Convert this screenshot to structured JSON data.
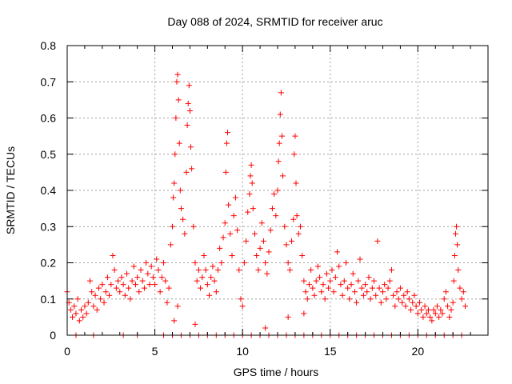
{
  "chart_data": {
    "type": "scatter",
    "title": "Day 088 of 2024, SRMTID for receiver aruc",
    "xlabel": "GPS time / hours",
    "ylabel": "SRMTID / TECUs",
    "xlim": [
      0,
      24
    ],
    "ylim": [
      0,
      0.8
    ],
    "xticks": [
      0,
      5,
      10,
      15,
      20
    ],
    "yticks": [
      0,
      0.1,
      0.2,
      0.3,
      0.4,
      0.5,
      0.6,
      0.7,
      0.8
    ],
    "xtick_labels": [
      "0",
      "5",
      "10",
      "15",
      "20"
    ],
    "ytick_labels": [
      "0",
      "0.1",
      "0.2",
      "0.3",
      "0.4",
      "0.5",
      "0.6",
      "0.7",
      "0.8"
    ],
    "grid": true,
    "marker": "+",
    "color": "#ff0000",
    "series": [
      {
        "name": "SRMTID",
        "points": [
          [
            0.0,
            0.12
          ],
          [
            0.1,
            0.09
          ],
          [
            0.2,
            0.07
          ],
          [
            0.3,
            0.05
          ],
          [
            0.4,
            0.08
          ],
          [
            0.5,
            0.06
          ],
          [
            0.6,
            0.1
          ],
          [
            0.7,
            0.04
          ],
          [
            0.8,
            0.07
          ],
          [
            0.9,
            0.05
          ],
          [
            1.0,
            0.08
          ],
          [
            1.1,
            0.06
          ],
          [
            1.2,
            0.09
          ],
          [
            1.3,
            0.15
          ],
          [
            1.4,
            0.12
          ],
          [
            1.5,
            0.08
          ],
          [
            1.6,
            0.11
          ],
          [
            1.7,
            0.07
          ],
          [
            1.8,
            0.13
          ],
          [
            1.9,
            0.1
          ],
          [
            2.0,
            0.14
          ],
          [
            2.1,
            0.09
          ],
          [
            2.2,
            0.12
          ],
          [
            2.3,
            0.16
          ],
          [
            2.4,
            0.11
          ],
          [
            2.5,
            0.14
          ],
          [
            2.6,
            0.22
          ],
          [
            2.7,
            0.18
          ],
          [
            2.8,
            0.13
          ],
          [
            2.9,
            0.15
          ],
          [
            3.0,
            0.12
          ],
          [
            3.1,
            0.16
          ],
          [
            3.2,
            0.14
          ],
          [
            3.3,
            0.11
          ],
          [
            3.4,
            0.17
          ],
          [
            3.5,
            0.13
          ],
          [
            3.6,
            0.1
          ],
          [
            3.7,
            0.15
          ],
          [
            3.8,
            0.19
          ],
          [
            3.9,
            0.14
          ],
          [
            4.0,
            0.16
          ],
          [
            4.1,
            0.12
          ],
          [
            4.2,
            0.18
          ],
          [
            4.3,
            0.15
          ],
          [
            4.4,
            0.13
          ],
          [
            4.5,
            0.2
          ],
          [
            4.6,
            0.17
          ],
          [
            4.7,
            0.14
          ],
          [
            4.8,
            0.19
          ],
          [
            4.9,
            0.16
          ],
          [
            5.0,
            0.14
          ],
          [
            5.1,
            0.21
          ],
          [
            5.2,
            0.18
          ],
          [
            5.3,
            0.12
          ],
          [
            5.4,
            0.16
          ],
          [
            5.5,
            0.2
          ],
          [
            5.6,
            0.15
          ],
          [
            5.7,
            0.09
          ],
          [
            5.8,
            0.13
          ],
          [
            5.9,
            0.25
          ],
          [
            6.0,
            0.3
          ],
          [
            6.05,
            0.38
          ],
          [
            6.1,
            0.42
          ],
          [
            6.15,
            0.5
          ],
          [
            6.2,
            0.6
          ],
          [
            6.25,
            0.7
          ],
          [
            6.3,
            0.72
          ],
          [
            6.35,
            0.65
          ],
          [
            6.4,
            0.53
          ],
          [
            6.45,
            0.4
          ],
          [
            6.5,
            0.35
          ],
          [
            6.6,
            0.32
          ],
          [
            6.7,
            0.28
          ],
          [
            6.8,
            0.45
          ],
          [
            6.85,
            0.58
          ],
          [
            6.9,
            0.64
          ],
          [
            6.95,
            0.69
          ],
          [
            7.0,
            0.62
          ],
          [
            7.05,
            0.52
          ],
          [
            7.1,
            0.46
          ],
          [
            7.2,
            0.3
          ],
          [
            7.3,
            0.2
          ],
          [
            7.4,
            0.15
          ],
          [
            7.5,
            0.18
          ],
          [
            7.6,
            0.13
          ],
          [
            7.7,
            0.16
          ],
          [
            7.8,
            0.22
          ],
          [
            7.9,
            0.18
          ],
          [
            8.0,
            0.14
          ],
          [
            8.1,
            0.11
          ],
          [
            8.2,
            0.16
          ],
          [
            8.3,
            0.19
          ],
          [
            8.4,
            0.15
          ],
          [
            8.5,
            0.12
          ],
          [
            8.6,
            0.18
          ],
          [
            8.7,
            0.24
          ],
          [
            8.8,
            0.2
          ],
          [
            8.9,
            0.27
          ],
          [
            9.0,
            0.31
          ],
          [
            9.05,
            0.45
          ],
          [
            9.1,
            0.53
          ],
          [
            9.15,
            0.56
          ],
          [
            9.2,
            0.36
          ],
          [
            9.3,
            0.28
          ],
          [
            9.4,
            0.22
          ],
          [
            9.5,
            0.33
          ],
          [
            9.6,
            0.38
          ],
          [
            9.7,
            0.29
          ],
          [
            9.8,
            0.18
          ],
          [
            9.9,
            0.1
          ],
          [
            10.0,
            0.08
          ],
          [
            10.1,
            0.2
          ],
          [
            10.2,
            0.26
          ],
          [
            10.3,
            0.34
          ],
          [
            10.4,
            0.39
          ],
          [
            10.45,
            0.44
          ],
          [
            10.5,
            0.47
          ],
          [
            10.55,
            0.42
          ],
          [
            10.6,
            0.35
          ],
          [
            10.7,
            0.28
          ],
          [
            10.8,
            0.22
          ],
          [
            10.9,
            0.18
          ],
          [
            11.0,
            0.24
          ],
          [
            11.1,
            0.31
          ],
          [
            11.2,
            0.26
          ],
          [
            11.3,
            0.2
          ],
          [
            11.4,
            0.17
          ],
          [
            11.5,
            0.23
          ],
          [
            11.6,
            0.29
          ],
          [
            11.7,
            0.35
          ],
          [
            11.8,
            0.39
          ],
          [
            11.9,
            0.33
          ],
          [
            12.0,
            0.4
          ],
          [
            12.05,
            0.48
          ],
          [
            12.1,
            0.53
          ],
          [
            12.15,
            0.61
          ],
          [
            12.2,
            0.67
          ],
          [
            12.25,
            0.55
          ],
          [
            12.3,
            0.44
          ],
          [
            12.4,
            0.3
          ],
          [
            12.5,
            0.25
          ],
          [
            12.6,
            0.2
          ],
          [
            12.7,
            0.18
          ],
          [
            12.8,
            0.26
          ],
          [
            12.9,
            0.32
          ],
          [
            12.95,
            0.5
          ],
          [
            13.0,
            0.55
          ],
          [
            13.05,
            0.42
          ],
          [
            13.1,
            0.33
          ],
          [
            13.2,
            0.28
          ],
          [
            13.3,
            0.3
          ],
          [
            13.4,
            0.22
          ],
          [
            13.5,
            0.15
          ],
          [
            13.6,
            0.12
          ],
          [
            13.7,
            0.1
          ],
          [
            13.8,
            0.14
          ],
          [
            13.9,
            0.18
          ],
          [
            14.0,
            0.13
          ],
          [
            14.1,
            0.11
          ],
          [
            14.2,
            0.15
          ],
          [
            14.3,
            0.19
          ],
          [
            14.4,
            0.16
          ],
          [
            14.5,
            0.12
          ],
          [
            14.6,
            0.14
          ],
          [
            14.7,
            0.1
          ],
          [
            14.8,
            0.17
          ],
          [
            14.9,
            0.13
          ],
          [
            15.0,
            0.15
          ],
          [
            15.1,
            0.18
          ],
          [
            15.2,
            0.12
          ],
          [
            15.3,
            0.16
          ],
          [
            15.4,
            0.23
          ],
          [
            15.5,
            0.19
          ],
          [
            15.6,
            0.14
          ],
          [
            15.7,
            0.11
          ],
          [
            15.8,
            0.15
          ],
          [
            15.9,
            0.2
          ],
          [
            16.0,
            0.13
          ],
          [
            16.1,
            0.1
          ],
          [
            16.2,
            0.14
          ],
          [
            16.3,
            0.17
          ],
          [
            16.4,
            0.12
          ],
          [
            16.5,
            0.09
          ],
          [
            16.6,
            0.15
          ],
          [
            16.7,
            0.21
          ],
          [
            16.8,
            0.13
          ],
          [
            16.9,
            0.11
          ],
          [
            17.0,
            0.14
          ],
          [
            17.1,
            0.12
          ],
          [
            17.2,
            0.16
          ],
          [
            17.3,
            0.1
          ],
          [
            17.4,
            0.13
          ],
          [
            17.5,
            0.15
          ],
          [
            17.6,
            0.11
          ],
          [
            17.7,
            0.26
          ],
          [
            17.8,
            0.13
          ],
          [
            17.9,
            0.09
          ],
          [
            18.0,
            0.12
          ],
          [
            18.1,
            0.14
          ],
          [
            18.2,
            0.1
          ],
          [
            18.3,
            0.13
          ],
          [
            18.4,
            0.15
          ],
          [
            18.5,
            0.18
          ],
          [
            18.6,
            0.11
          ],
          [
            18.7,
            0.08
          ],
          [
            18.8,
            0.12
          ],
          [
            18.9,
            0.1
          ],
          [
            19.0,
            0.13
          ],
          [
            19.1,
            0.09
          ],
          [
            19.2,
            0.11
          ],
          [
            19.3,
            0.08
          ],
          [
            19.4,
            0.12
          ],
          [
            19.5,
            0.1
          ],
          [
            19.6,
            0.07
          ],
          [
            19.7,
            0.09
          ],
          [
            19.8,
            0.11
          ],
          [
            19.9,
            0.08
          ],
          [
            20.0,
            0.06
          ],
          [
            20.1,
            0.09
          ],
          [
            20.2,
            0.07
          ],
          [
            20.3,
            0.05
          ],
          [
            20.4,
            0.08
          ],
          [
            20.5,
            0.06
          ],
          [
            20.6,
            0.07
          ],
          [
            20.7,
            0.05
          ],
          [
            20.8,
            0.04
          ],
          [
            20.9,
            0.07
          ],
          [
            21.0,
            0.06
          ],
          [
            21.1,
            0.08
          ],
          [
            21.2,
            0.05
          ],
          [
            21.3,
            0.07
          ],
          [
            21.4,
            0.06
          ],
          [
            21.5,
            0.1
          ],
          [
            21.6,
            0.12
          ],
          [
            21.7,
            0.08
          ],
          [
            21.8,
            0.05
          ],
          [
            21.9,
            0.07
          ],
          [
            22.0,
            0.09
          ],
          [
            22.05,
            0.15
          ],
          [
            22.1,
            0.22
          ],
          [
            22.15,
            0.28
          ],
          [
            22.2,
            0.3
          ],
          [
            22.25,
            0.25
          ],
          [
            22.3,
            0.18
          ],
          [
            22.4,
            0.13
          ],
          [
            22.5,
            0.1
          ],
          [
            22.6,
            0.12
          ],
          [
            22.7,
            0.08
          ],
          [
            0.5,
            0.0
          ],
          [
            1.5,
            0.0
          ],
          [
            3.2,
            0.0
          ],
          [
            4.0,
            0.0
          ],
          [
            5.5,
            0.0
          ],
          [
            6.0,
            0.0
          ],
          [
            6.5,
            0.0
          ],
          [
            7.0,
            0.0
          ],
          [
            7.5,
            0.0
          ],
          [
            8.0,
            0.0
          ],
          [
            8.5,
            0.0
          ],
          [
            9.0,
            0.0
          ],
          [
            9.5,
            0.0
          ],
          [
            10.0,
            0.0
          ],
          [
            10.5,
            0.0
          ],
          [
            11.0,
            0.0
          ],
          [
            11.5,
            0.0
          ],
          [
            12.0,
            0.0
          ],
          [
            12.5,
            0.0
          ],
          [
            13.0,
            0.0
          ],
          [
            13.5,
            0.0
          ],
          [
            14.0,
            0.0
          ],
          [
            14.5,
            0.0
          ],
          [
            15.0,
            0.0
          ],
          [
            15.5,
            0.0
          ],
          [
            16.0,
            0.0
          ],
          [
            16.5,
            0.0
          ],
          [
            17.0,
            0.0
          ],
          [
            17.5,
            0.0
          ],
          [
            18.0,
            0.0
          ],
          [
            18.5,
            0.0
          ],
          [
            19.0,
            0.0
          ],
          [
            19.5,
            0.0
          ],
          [
            20.0,
            0.0
          ],
          [
            20.5,
            0.0
          ],
          [
            21.0,
            0.0
          ],
          [
            21.5,
            0.0
          ],
          [
            22.0,
            0.0
          ],
          [
            22.5,
            0.0
          ],
          [
            6.1,
            0.04
          ],
          [
            6.3,
            0.08
          ],
          [
            7.3,
            0.03
          ],
          [
            11.3,
            0.02
          ],
          [
            12.6,
            0.05
          ],
          [
            13.5,
            0.06
          ]
        ]
      }
    ]
  }
}
